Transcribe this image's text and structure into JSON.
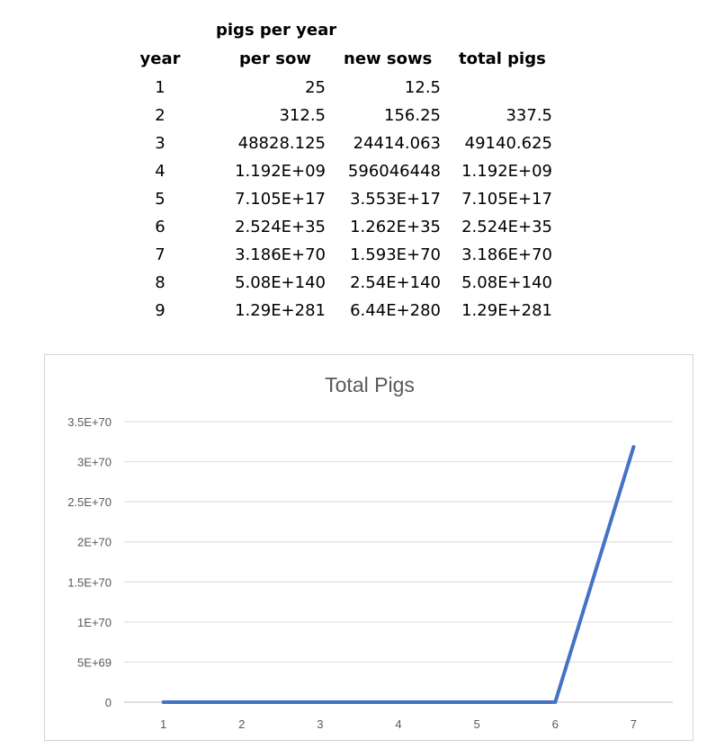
{
  "table": {
    "header_top": "pigs per year",
    "headers": [
      "year",
      "per sow",
      "new sows",
      "total pigs"
    ],
    "rows": [
      [
        "1",
        "25",
        "12.5",
        ""
      ],
      [
        "2",
        "312.5",
        "156.25",
        "337.5"
      ],
      [
        "3",
        "48828.125",
        "24414.063",
        "49140.625"
      ],
      [
        "4",
        "1.192E+09",
        "596046448",
        "1.192E+09"
      ],
      [
        "5",
        "7.105E+17",
        "3.553E+17",
        "7.105E+17"
      ],
      [
        "6",
        "2.524E+35",
        "1.262E+35",
        "2.524E+35"
      ],
      [
        "7",
        "3.186E+70",
        "1.593E+70",
        "3.186E+70"
      ],
      [
        "8",
        "5.08E+140",
        "2.54E+140",
        "5.08E+140"
      ],
      [
        "9",
        "1.29E+281",
        "6.44E+280",
        "1.29E+281"
      ]
    ]
  },
  "chart_data": {
    "type": "line",
    "title": "Total Pigs",
    "categories": [
      "1",
      "2",
      "3",
      "4",
      "5",
      "6",
      "7"
    ],
    "series": [
      {
        "values": [
          0,
          337.5,
          49140.625,
          1192000000.0,
          7.105e+17,
          2.524e+35,
          3.186e+70
        ],
        "color": "#4472C4"
      }
    ],
    "ylim": [
      0,
      3.5e+70
    ],
    "y_ticks": [
      0,
      5e+69,
      1e+70,
      1.5e+70,
      2e+70,
      2.5e+70,
      3e+70,
      3.5e+70
    ],
    "y_tick_labels": [
      "0",
      "5E+69",
      "1E+70",
      "1.5E+70",
      "2E+70",
      "2.5E+70",
      "3E+70",
      "3.5E+70"
    ],
    "grid": true,
    "legend": "none",
    "colors": {
      "gridline": "#d9d9d9",
      "axis": "#bfbfbf",
      "tick_text": "#595959",
      "title_text": "#595959"
    }
  }
}
